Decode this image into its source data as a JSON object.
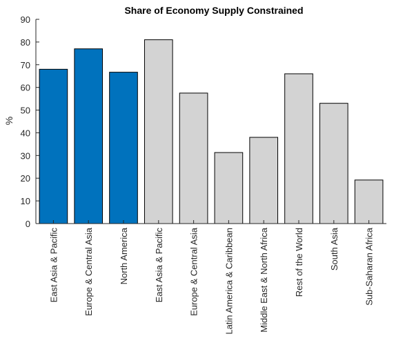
{
  "chart_data": {
    "type": "bar",
    "title": "Share of Economy Supply Constrained",
    "xlabel": "",
    "ylabel": "%",
    "ylim": [
      0,
      90
    ],
    "yticks": [
      0,
      10,
      20,
      30,
      40,
      50,
      60,
      70,
      80,
      90
    ],
    "grid": false,
    "legend": "none",
    "categories": [
      "East Asia & Pacific",
      "Europe & Central Asia",
      "North America",
      "East Asia & Pacific",
      "Europe & Central Asia",
      "Latin America & Caribbean",
      "Middle East & North Africa",
      "Rest of the World",
      "South Asia",
      "Sub-Saharan Africa"
    ],
    "values": [
      68,
      77,
      66.7,
      81,
      57.5,
      31.3,
      38,
      66,
      53,
      19.2
    ],
    "bar_colors": [
      "#0072BD",
      "#0072BD",
      "#0072BD",
      "#D3D3D3",
      "#D3D3D3",
      "#D3D3D3",
      "#D3D3D3",
      "#D3D3D3",
      "#D3D3D3",
      "#D3D3D3"
    ],
    "bar_edge_color": "#000000",
    "axis_color": "#262626"
  }
}
